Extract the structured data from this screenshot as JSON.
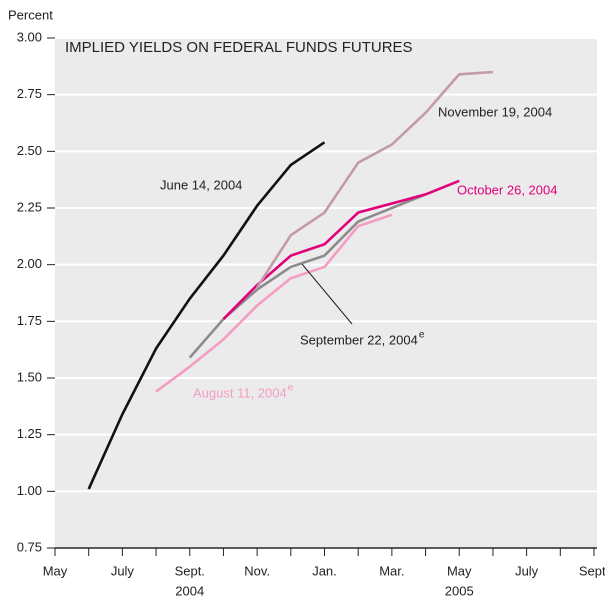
{
  "chart_data": {
    "type": "line",
    "title": "IMPLIED YIELDS ON FEDERAL FUNDS FUTURES",
    "ylabel": "Percent",
    "x": [
      1,
      2,
      3,
      4,
      5,
      6,
      7,
      8,
      9,
      10,
      11,
      12,
      13
    ],
    "xlim": [
      0,
      16
    ],
    "xticks": [
      {
        "value": 0,
        "label": "May"
      },
      {
        "value": 2,
        "label": "July"
      },
      {
        "value": 4,
        "label": "Sept."
      },
      {
        "value": 6,
        "label": "Nov."
      },
      {
        "value": 8,
        "label": "Jan."
      },
      {
        "value": 10,
        "label": "Mar."
      },
      {
        "value": 12,
        "label": "May"
      },
      {
        "value": 14,
        "label": "July"
      },
      {
        "value": 16,
        "label": "Sept."
      }
    ],
    "x_minor_ticks": [
      1,
      3,
      5,
      7,
      9,
      11,
      13,
      15
    ],
    "x_year_labels": [
      {
        "value": 4,
        "label": "2004"
      },
      {
        "value": 12,
        "label": "2005"
      }
    ],
    "ylim": [
      0.75,
      3.0
    ],
    "yticks": [
      {
        "value": 0.75,
        "label": "0.75"
      },
      {
        "value": 1.0,
        "label": "1.00"
      },
      {
        "value": 1.25,
        "label": "1.25"
      },
      {
        "value": 1.5,
        "label": "1.50"
      },
      {
        "value": 1.75,
        "label": "1.75"
      },
      {
        "value": 2.0,
        "label": "2.00"
      },
      {
        "value": 2.25,
        "label": "2.25"
      },
      {
        "value": 2.5,
        "label": "2.50"
      },
      {
        "value": 2.75,
        "label": "2.75"
      },
      {
        "value": 3.0,
        "label": "3.00"
      }
    ],
    "grid": true,
    "series": [
      {
        "name": "June 14, 2004",
        "color": "#111111",
        "values": [
          1.01,
          1.34,
          1.63,
          1.85,
          2.04,
          2.26,
          2.44,
          2.54,
          null,
          null,
          null,
          null,
          null
        ]
      },
      {
        "name": "August 11, 2004",
        "sup": "e",
        "color": "#f59cc4",
        "values": [
          null,
          null,
          1.44,
          1.55,
          1.67,
          1.82,
          1.94,
          1.99,
          2.17,
          2.22,
          null,
          null,
          null
        ]
      },
      {
        "name": "September 22, 2004",
        "sup": "e",
        "color": "#8c8c8c",
        "values": [
          null,
          null,
          null,
          1.59,
          1.76,
          1.89,
          1.99,
          2.04,
          2.19,
          2.25,
          2.31,
          null,
          null
        ]
      },
      {
        "name": "October 26, 2004",
        "color": "#e2007a",
        "values": [
          null,
          null,
          null,
          null,
          1.76,
          1.91,
          2.04,
          2.09,
          2.23,
          2.27,
          2.31,
          2.37,
          null
        ]
      },
      {
        "name": "November 19, 2004",
        "color": "#c49aab",
        "values": [
          null,
          null,
          null,
          null,
          null,
          1.9,
          2.13,
          2.23,
          2.45,
          2.53,
          2.67,
          2.84,
          2.85
        ]
      }
    ]
  }
}
